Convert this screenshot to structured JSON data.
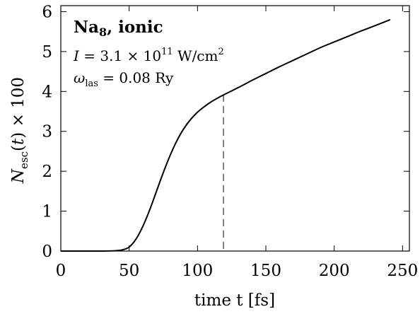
{
  "chart_data": {
    "type": "line",
    "title": "",
    "xlabel": "time t [fs]",
    "ylabel": "N_esc(t) × 100",
    "xlim": [
      0,
      255
    ],
    "ylim": [
      0,
      6.15
    ],
    "x_ticks": [
      0,
      50,
      100,
      150,
      200,
      250
    ],
    "y_ticks": [
      0,
      1,
      2,
      3,
      4,
      5,
      6
    ],
    "grid": false,
    "series": [
      {
        "x": [
          0,
          30,
          40,
          45,
          50,
          55,
          60,
          65,
          70,
          75,
          80,
          85,
          90,
          95,
          100,
          105,
          110,
          115,
          120,
          130,
          140,
          150,
          160,
          170,
          180,
          190,
          200,
          210,
          220,
          230,
          241
        ],
        "y": [
          0,
          0,
          0.01,
          0.03,
          0.1,
          0.3,
          0.62,
          1.03,
          1.5,
          1.97,
          2.4,
          2.77,
          3.07,
          3.3,
          3.48,
          3.62,
          3.74,
          3.84,
          3.93,
          4.1,
          4.28,
          4.45,
          4.62,
          4.78,
          4.94,
          5.1,
          5.24,
          5.38,
          5.52,
          5.65,
          5.8
        ],
        "color": "#000000"
      }
    ],
    "reference_lines": [
      {
        "orientation": "vertical",
        "x": 119,
        "y_to": 3.92,
        "style": "dashed"
      }
    ],
    "annotations": {
      "system": "Na8, ionic",
      "intensity": "I = 3.1 × 10^11 W/cm^2",
      "frequency": "ω_las = 0.08 Ry"
    }
  }
}
